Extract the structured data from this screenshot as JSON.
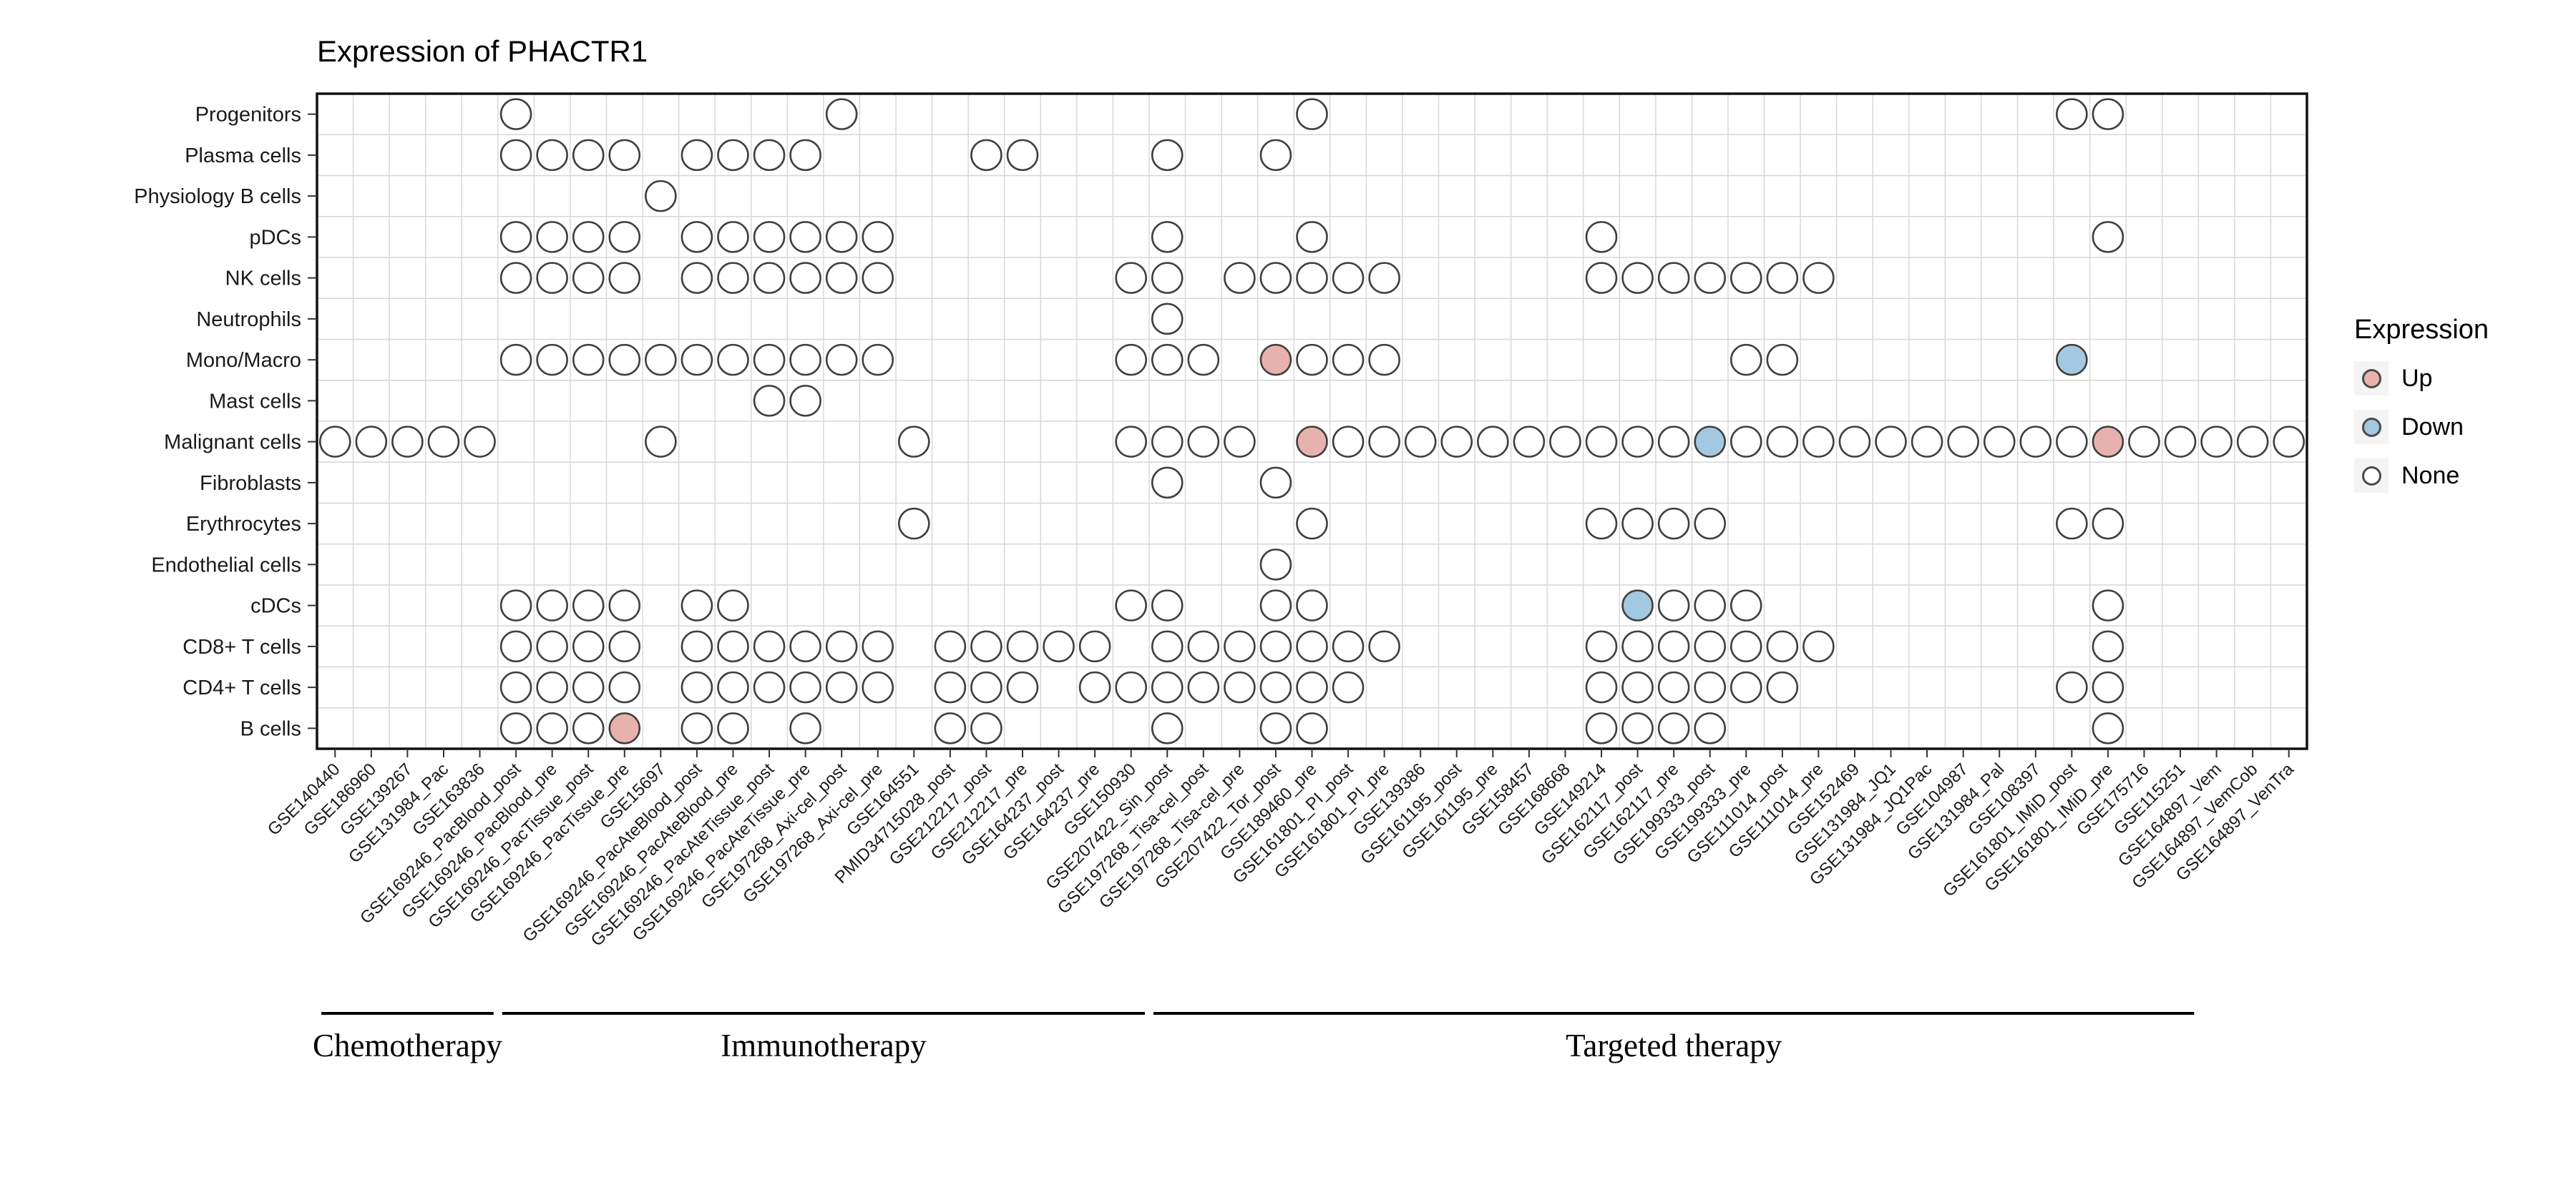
{
  "chart_data": {
    "type": "scatter",
    "subtype": "dot-matrix",
    "title": "Expression of PHACTR1",
    "legend": {
      "title": "Expression",
      "items": [
        {
          "label": "Up",
          "state": "up"
        },
        {
          "label": "Down",
          "state": "down"
        },
        {
          "label": "None",
          "state": "none"
        }
      ]
    },
    "state_colors": {
      "up": "#e7b2ad",
      "down": "#a3c8e1",
      "none": "#ffffff"
    },
    "dot_stroke_color": "#3f3f3f",
    "grid_color": "#d6d6d6",
    "panel_border_color": "#111111",
    "rows": [
      "Progenitors",
      "Plasma cells",
      "Physiology B cells",
      "pDCs",
      "NK cells",
      "Neutrophils",
      "Mono/Macro",
      "Mast cells",
      "Malignant cells",
      "Fibroblasts",
      "Erythrocytes",
      "Endothelial cells",
      "cDCs",
      "CD8+ T cells",
      "CD4+ T cells",
      "B cells"
    ],
    "columns": [
      "GSE140440",
      "GSE186960",
      "GSE139267",
      "GSE131984_Pac",
      "GSE163836",
      "GSE169246_PacBlood_post",
      "GSE169246_PacBlood_pre",
      "GSE169246_PacTissue_post",
      "GSE169246_PacTissue_pre",
      "GSE15697",
      "GSE169246_PacAteBlood_post",
      "GSE169246_PacAteBlood_pre",
      "GSE169246_PacAteTissue_post",
      "GSE169246_PacAteTissue_pre",
      "GSE197268_Axi-cel_post",
      "GSE197268_Axi-cel_pre",
      "GSE164551",
      "PMID34715028_post",
      "GSE212217_post",
      "GSE212217_pre",
      "GSE164237_post",
      "GSE164237_pre",
      "GSE150930",
      "GSE207422_Sin_post",
      "GSE197268_Tisa-cel_post",
      "GSE197268_Tisa-cel_pre",
      "GSE207422_Tor_post",
      "GSE189460_pre",
      "GSE161801_PI_post",
      "GSE161801_PI_pre",
      "GSE139386",
      "GSE161195_post",
      "GSE161195_pre",
      "GSE158457",
      "GSE168668",
      "GSE149214",
      "GSE162117_post",
      "GSE162117_pre",
      "GSE199333_post",
      "GSE199333_pre",
      "GSE111014_post",
      "GSE111014_pre",
      "GSE152469",
      "GSE131984_JQ1",
      "GSE131984_JQ1Pac",
      "GSE104987",
      "GSE131984_Pal",
      "GSE108397",
      "GSE161801_IMiD_post",
      "GSE161801_IMiD_pre",
      "GSE175716",
      "GSE115251",
      "GSE164897_Vem",
      "GSE164897_VemCob",
      "GSE164897_VenTra"
    ],
    "groups": [
      {
        "label": "Chemotherapy",
        "start": 0,
        "end": 4
      },
      {
        "label": "Immunotherapy",
        "start": 5,
        "end": 22
      },
      {
        "label": "Targeted therapy",
        "start": 23,
        "end": 51
      }
    ],
    "cells": [
      {
        "row": "Progenitors",
        "none": [
          5,
          14,
          27,
          48,
          49
        ]
      },
      {
        "row": "Plasma cells",
        "none": [
          5,
          6,
          7,
          8,
          10,
          11,
          12,
          13,
          18,
          19,
          23,
          26
        ]
      },
      {
        "row": "Physiology B cells",
        "none": [
          9
        ]
      },
      {
        "row": "pDCs",
        "none": [
          5,
          6,
          7,
          8,
          10,
          11,
          12,
          13,
          14,
          15,
          23,
          27,
          35,
          49
        ]
      },
      {
        "row": "NK cells",
        "none": [
          5,
          6,
          7,
          8,
          10,
          11,
          12,
          13,
          14,
          15,
          22,
          23,
          25,
          26,
          27,
          28,
          29,
          35,
          36,
          37,
          38,
          39,
          40,
          41
        ]
      },
      {
        "row": "Neutrophils",
        "none": [
          23
        ]
      },
      {
        "row": "Mono/Macro",
        "none": [
          5,
          6,
          7,
          8,
          9,
          10,
          11,
          12,
          13,
          14,
          15,
          22,
          23,
          24,
          27,
          28,
          29,
          39,
          40
        ],
        "up": [
          26
        ],
        "down": [
          48
        ]
      },
      {
        "row": "Mast cells",
        "none": [
          12,
          13
        ]
      },
      {
        "row": "Malignant cells",
        "none": [
          0,
          1,
          2,
          3,
          4,
          9,
          16,
          22,
          23,
          24,
          25,
          28,
          29,
          30,
          31,
          32,
          33,
          34,
          35,
          36,
          37,
          39,
          40,
          41,
          42,
          43,
          44,
          45,
          46,
          47,
          48,
          50,
          51,
          52,
          53,
          54
        ],
        "up": [
          27,
          49
        ],
        "down": [
          38
        ]
      },
      {
        "row": "Fibroblasts",
        "none": [
          23,
          26
        ]
      },
      {
        "row": "Erythrocytes",
        "none": [
          16,
          27,
          35,
          36,
          37,
          38,
          48,
          49
        ]
      },
      {
        "row": "Endothelial cells",
        "none": [
          26
        ]
      },
      {
        "row": "cDCs",
        "none": [
          5,
          6,
          7,
          8,
          10,
          11,
          22,
          23,
          26,
          27,
          37,
          38,
          39,
          49
        ],
        "down": [
          36
        ]
      },
      {
        "row": "CD8+ T cells",
        "none": [
          5,
          6,
          7,
          8,
          10,
          11,
          12,
          13,
          14,
          15,
          17,
          18,
          19,
          20,
          21,
          23,
          24,
          25,
          26,
          27,
          28,
          29,
          35,
          36,
          37,
          38,
          39,
          40,
          41,
          49
        ]
      },
      {
        "row": "CD4+ T cells",
        "none": [
          5,
          6,
          7,
          8,
          10,
          11,
          12,
          13,
          14,
          15,
          17,
          18,
          19,
          21,
          22,
          23,
          24,
          25,
          26,
          27,
          28,
          35,
          36,
          37,
          38,
          39,
          40,
          48,
          49
        ]
      },
      {
        "row": "B cells",
        "none": [
          5,
          6,
          7,
          10,
          11,
          13,
          17,
          18,
          23,
          26,
          27,
          35,
          36,
          37,
          38,
          49
        ],
        "up": [
          8
        ]
      }
    ]
  }
}
